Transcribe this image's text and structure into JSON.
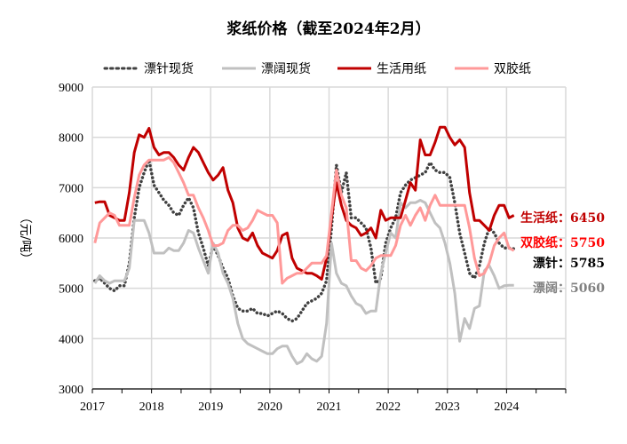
{
  "chart_data": {
    "type": "line",
    "title": "浆纸价格（截至2024年2月）",
    "ylabel": "（元/吨）",
    "xlabel": "",
    "x_start": "2017-01",
    "x_frequency": "monthly",
    "xlim": [
      2017,
      2025
    ],
    "ylim": [
      3000,
      9000
    ],
    "x_ticks": [
      "2017",
      "2018",
      "2019",
      "2020",
      "2021",
      "2022",
      "2023",
      "2024"
    ],
    "y_ticks": [
      "3000",
      "4000",
      "5000",
      "6000",
      "7000",
      "8000",
      "9000"
    ],
    "grid": true,
    "legend_position": "top",
    "series": [
      {
        "name": "漂针现货",
        "color": "#404040",
        "style": "dotted",
        "end_label": "漂针：",
        "end_value": "5785",
        "end_color": "#000000",
        "values": [
          5150,
          5200,
          5100,
          5000,
          4950,
          5050,
          5050,
          5500,
          6400,
          7000,
          7300,
          7550,
          7050,
          6900,
          6750,
          6650,
          6500,
          6450,
          6650,
          6800,
          6600,
          6100,
          5800,
          5450,
          5850,
          5650,
          5400,
          5200,
          4850,
          4600,
          4550,
          4550,
          4600,
          4500,
          4500,
          4450,
          4500,
          4550,
          4500,
          4400,
          4350,
          4400,
          4550,
          4700,
          4750,
          4800,
          4900,
          5150,
          6200,
          7450,
          6900,
          7300,
          6400,
          6400,
          6300,
          6200,
          5800,
          5100,
          5200,
          5900,
          6200,
          6400,
          6900,
          7050,
          7150,
          7200,
          7250,
          7300,
          7500,
          7350,
          7300,
          7300,
          7200,
          6700,
          6100,
          5700,
          5300,
          5200,
          5450,
          5900,
          6200,
          6100,
          5900,
          5800,
          5800,
          5785
        ]
      },
      {
        "name": "漂阔现货",
        "color": "#c0c0c0",
        "style": "solid",
        "end_label": "漂阔：",
        "end_value": "5060",
        "end_color": "#808080",
        "values": [
          5100,
          5250,
          5150,
          5100,
          5150,
          5150,
          5150,
          5400,
          6350,
          6350,
          6350,
          6100,
          5700,
          5700,
          5700,
          5800,
          5750,
          5750,
          5900,
          6150,
          6100,
          5800,
          5550,
          5300,
          5900,
          5700,
          5300,
          5100,
          4800,
          4300,
          4000,
          3900,
          3850,
          3800,
          3750,
          3700,
          3700,
          3800,
          3850,
          3850,
          3650,
          3500,
          3550,
          3700,
          3600,
          3550,
          3650,
          4300,
          5900,
          5300,
          5100,
          5050,
          4850,
          4700,
          4650,
          4500,
          4550,
          4550,
          5300,
          5700,
          6100,
          6000,
          6700,
          6600,
          6700,
          6700,
          6750,
          6700,
          6500,
          6300,
          6200,
          5900,
          5500,
          4900,
          3950,
          4400,
          4200,
          4600,
          4650,
          5350,
          5450,
          5250,
          5000,
          5050,
          5060,
          5060
        ]
      },
      {
        "name": "生活用纸",
        "color": "#c00000",
        "style": "solid",
        "end_label": "生活纸：",
        "end_value": "6450",
        "end_color": "#c00000",
        "values": [
          6700,
          6720,
          6720,
          6450,
          6400,
          6350,
          6350,
          6900,
          7700,
          8050,
          8000,
          8180,
          7800,
          7650,
          7700,
          7700,
          7600,
          7450,
          7350,
          7600,
          7800,
          7700,
          7500,
          7300,
          7150,
          7250,
          7400,
          6950,
          6700,
          6200,
          6000,
          5950,
          6100,
          5850,
          5700,
          5650,
          5600,
          5750,
          6050,
          6100,
          5600,
          5400,
          5350,
          5300,
          5300,
          5250,
          5180,
          5600,
          6400,
          7100,
          6650,
          6350,
          6250,
          6200,
          6050,
          6100,
          6200,
          6000,
          6550,
          6350,
          6400,
          6400,
          6400,
          6750,
          7100,
          6950,
          7950,
          7650,
          7650,
          7900,
          8200,
          8200,
          8000,
          7850,
          7950,
          7800,
          6900,
          6350,
          6350,
          6250,
          6150,
          6450,
          6650,
          6650,
          6400,
          6450
        ]
      },
      {
        "name": "双胶纸",
        "color": "#ff9999",
        "style": "solid",
        "end_label": "双胶纸：",
        "end_value": "5750",
        "end_color": "#ff0000",
        "values": [
          5900,
          6300,
          6400,
          6500,
          6450,
          6250,
          6250,
          6250,
          6800,
          7250,
          7450,
          7550,
          7550,
          7550,
          7550,
          7600,
          7500,
          7300,
          7100,
          6850,
          6850,
          6600,
          6400,
          6150,
          5850,
          5850,
          5900,
          6150,
          6250,
          6250,
          6150,
          6200,
          6350,
          6550,
          6500,
          6450,
          6450,
          6300,
          5100,
          5200,
          5250,
          5300,
          5300,
          5400,
          5500,
          5500,
          5500,
          5650,
          6500,
          7350,
          6850,
          6600,
          5550,
          5550,
          5400,
          5350,
          5450,
          5600,
          5650,
          5650,
          5650,
          5850,
          6250,
          6450,
          6250,
          6450,
          6600,
          6350,
          6650,
          6850,
          6650,
          6650,
          6650,
          6650,
          6650,
          6650,
          6200,
          5600,
          5250,
          5300,
          5500,
          5850,
          6000,
          6100,
          5800,
          5750
        ]
      }
    ]
  }
}
